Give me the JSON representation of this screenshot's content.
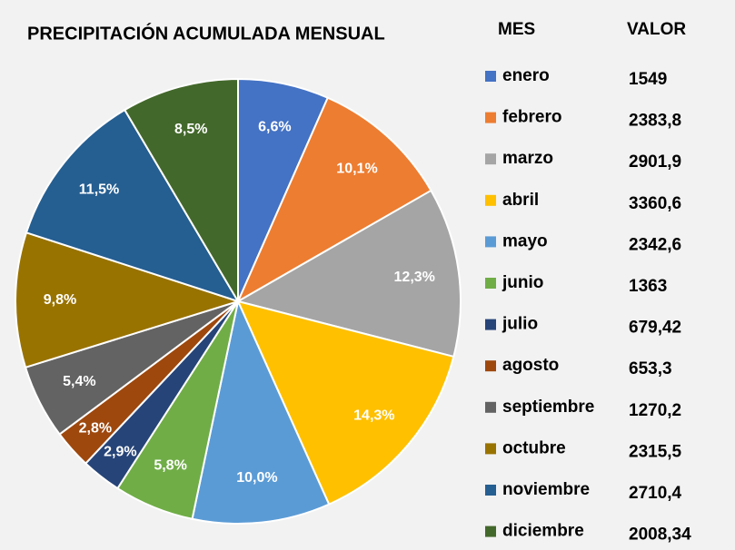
{
  "chart_data": {
    "type": "pie",
    "title": "PRECIPITACIÓN ACUMULADA MENSUAL",
    "categories": [
      "enero",
      "febrero",
      "marzo",
      "abril",
      "mayo",
      "junio",
      "julio",
      "agosto",
      "septiembre",
      "octubre",
      "noviembre",
      "diciembre"
    ],
    "values": [
      6.6,
      10.1,
      12.3,
      14.3,
      10.0,
      5.8,
      2.9,
      2.8,
      5.4,
      9.8,
      11.5,
      8.5
    ],
    "value_labels": [
      "6,6%",
      "10,1%",
      "12,3%",
      "14,3%",
      "10,0%",
      "5,8%",
      "2,9%",
      "2,8%",
      "5,4%",
      "9,8%",
      "11,5%",
      "8,5%"
    ],
    "colors": [
      "#4472c4",
      "#ed7d31",
      "#a5a5a5",
      "#ffc000",
      "#5b9bd5",
      "#70ad47",
      "#264478",
      "#9e480e",
      "#636363",
      "#997300",
      "#255e91",
      "#43682b"
    ],
    "table": {
      "headers": [
        "MES",
        "VALOR"
      ],
      "values": [
        "1549",
        "2383,8",
        "2901,9",
        "3360,6",
        "2342,6",
        "1363",
        "679,42",
        "653,3",
        "1270,2",
        "2315,5",
        "2710,4",
        "2008,34"
      ]
    }
  }
}
